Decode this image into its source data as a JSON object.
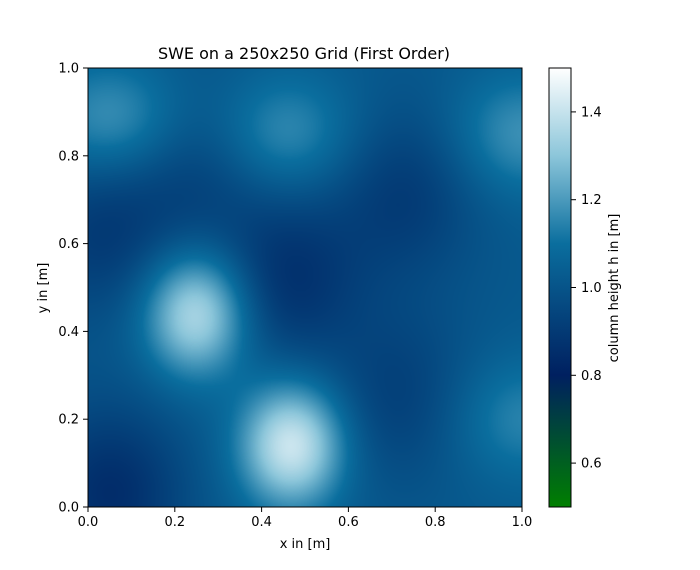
{
  "chart_data": {
    "type": "heatmap",
    "title": "SWE on a 250x250 Grid (First Order)",
    "xlabel": "x in [m]",
    "ylabel": "y in [m]",
    "xlim": [
      0.0,
      1.0
    ],
    "ylim": [
      0.0,
      1.0
    ],
    "xticks": [
      "0.0",
      "0.2",
      "0.4",
      "0.6",
      "0.8",
      "1.0"
    ],
    "yticks": [
      "0.0",
      "0.2",
      "0.4",
      "0.6",
      "0.8",
      "1.0"
    ],
    "grid_resolution": "250x250",
    "colorbar": {
      "label": "column height h in [m]",
      "range": [
        0.5,
        1.5
      ],
      "ticks": [
        "0.6",
        "0.8",
        "1.0",
        "1.2",
        "1.4"
      ],
      "colormap": [
        "#007f00",
        "#002060",
        "#0a6e9e",
        "#8cc6da",
        "#ffffff"
      ]
    },
    "field_features": [
      {
        "x": 0.25,
        "y": 0.44,
        "h": 1.38,
        "kind": "peak"
      },
      {
        "x": 0.47,
        "y": 0.14,
        "h": 1.42,
        "kind": "peak"
      },
      {
        "x": 0.06,
        "y": 0.88,
        "h": 1.2,
        "kind": "bump"
      },
      {
        "x": 0.45,
        "y": 0.85,
        "h": 1.18,
        "kind": "bump"
      },
      {
        "x": 1.0,
        "y": 0.85,
        "h": 1.18,
        "kind": "bump"
      },
      {
        "x": 1.0,
        "y": 0.2,
        "h": 1.15,
        "kind": "bump"
      },
      {
        "x": 0.46,
        "y": 0.52,
        "h": 0.87,
        "kind": "trough"
      },
      {
        "x": 0.03,
        "y": 0.63,
        "h": 0.9,
        "kind": "trough"
      },
      {
        "x": 0.05,
        "y": 0.03,
        "h": 0.85,
        "kind": "trough"
      },
      {
        "x": 0.73,
        "y": 0.72,
        "h": 0.9,
        "kind": "trough"
      },
      {
        "x": 0.72,
        "y": 0.25,
        "h": 0.92,
        "kind": "trough"
      },
      {
        "x": 0.25,
        "y": 0.78,
        "h": 0.92,
        "kind": "trough"
      }
    ]
  }
}
